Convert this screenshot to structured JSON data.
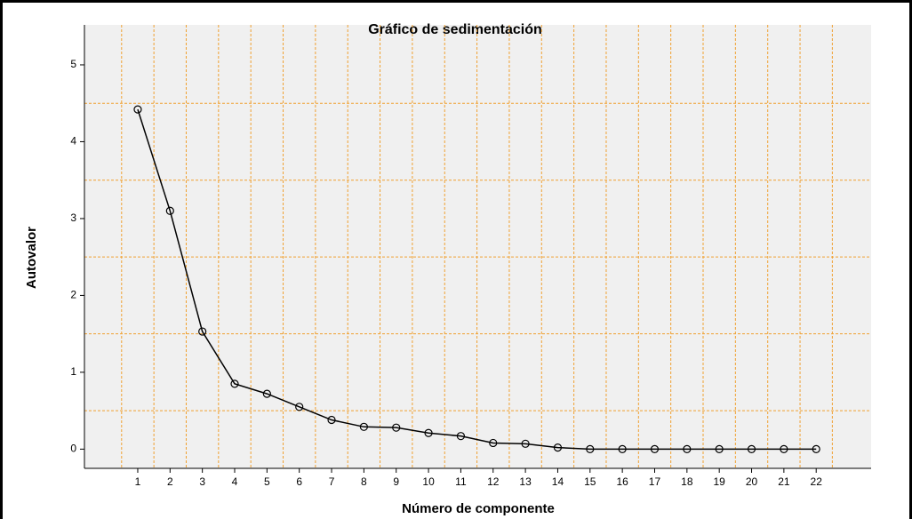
{
  "chart_data": {
    "type": "line",
    "title": "Gráfico de sedimentación",
    "xlabel": "Número de componente",
    "ylabel": "Autovalor",
    "x": [
      1,
      2,
      3,
      4,
      5,
      6,
      7,
      8,
      9,
      10,
      11,
      12,
      13,
      14,
      15,
      16,
      17,
      18,
      19,
      20,
      21,
      22
    ],
    "series": [
      {
        "name": "Autovalor",
        "color": "#000000",
        "values": [
          4.42,
          3.1,
          1.53,
          0.85,
          0.72,
          0.55,
          0.38,
          0.29,
          0.28,
          0.21,
          0.17,
          0.08,
          0.07,
          0.02,
          0,
          0,
          0,
          0,
          0,
          0,
          0,
          0
        ]
      }
    ],
    "xlim": [
      -0.65,
      23.7
    ],
    "ylim": [
      -0.25,
      5.52
    ],
    "xticks": [
      1,
      2,
      3,
      4,
      5,
      6,
      7,
      8,
      9,
      10,
      11,
      12,
      13,
      14,
      15,
      16,
      17,
      18,
      19,
      20,
      21,
      22
    ],
    "yticks": [
      0,
      1,
      2,
      3,
      4,
      5
    ],
    "grid": true,
    "grid_color": "#f0a030",
    "xgrid": [
      0.5,
      1.5,
      2.5,
      3.5,
      4.5,
      5.5,
      6.5,
      7.5,
      8.5,
      9.5,
      10.5,
      11.5,
      12.5,
      13.5,
      14.5,
      15.5,
      16.5,
      17.5,
      18.5,
      19.5,
      20.5,
      21.5,
      22.5
    ],
    "ygrid": [
      0.5,
      1.5,
      2.5,
      3.5,
      4.5
    ]
  }
}
